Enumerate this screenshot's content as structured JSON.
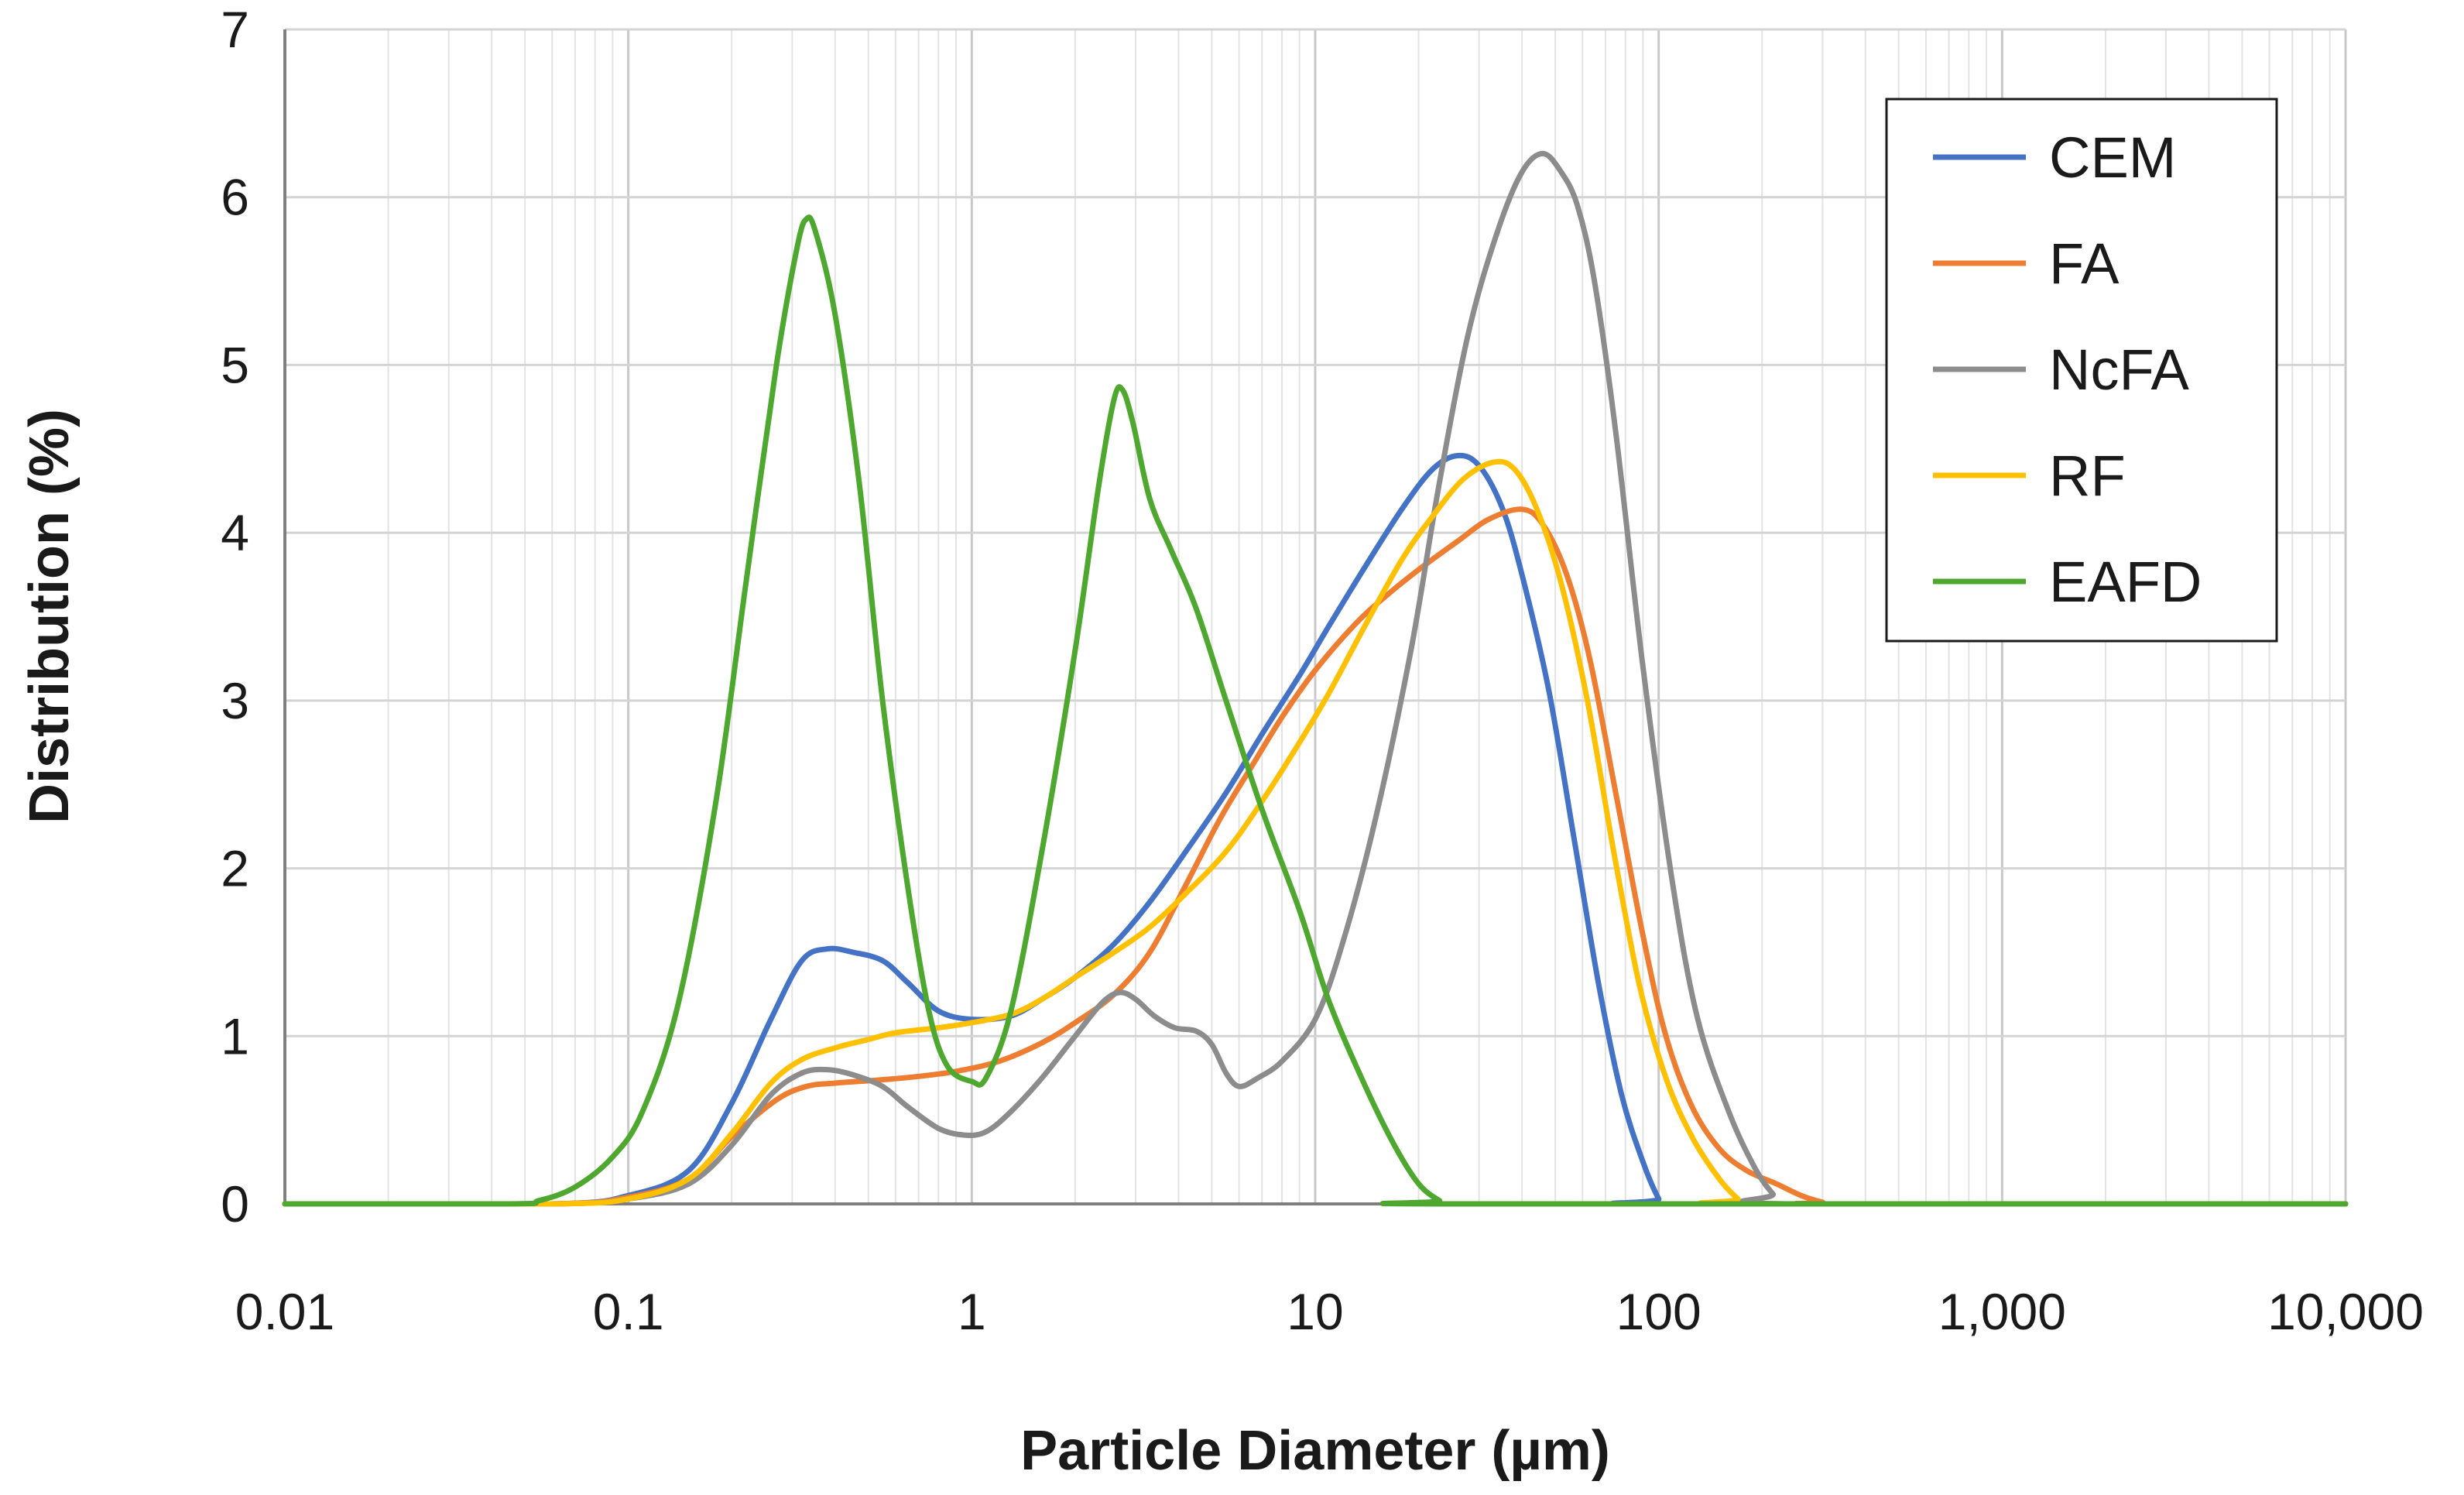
{
  "chart_data": {
    "type": "line",
    "title": "",
    "xlabel": "Particle Diameter (µm)",
    "ylabel": "Distribution (%)",
    "x_scale": "log",
    "xlim": [
      0.01,
      10000
    ],
    "ylim": [
      0,
      7
    ],
    "x_ticks": [
      0.01,
      0.1,
      1,
      10,
      100,
      1000,
      10000
    ],
    "x_tick_labels": [
      "0.01",
      "0.1",
      "1",
      "10",
      "100",
      "1,000",
      "10,000"
    ],
    "y_ticks": [
      0,
      1,
      2,
      3,
      4,
      5,
      6,
      7
    ],
    "y_tick_labels": [
      "0",
      "1",
      "2",
      "3",
      "4",
      "5",
      "6",
      "7"
    ],
    "grid": true,
    "legend_position": "top-right",
    "series": [
      {
        "name": "CEM",
        "color": "#4472C4",
        "points": [
          [
            0.01,
            0
          ],
          [
            0.06,
            0
          ],
          [
            0.1,
            0.05
          ],
          [
            0.15,
            0.2
          ],
          [
            0.2,
            0.6
          ],
          [
            0.26,
            1.1
          ],
          [
            0.32,
            1.45
          ],
          [
            0.38,
            1.52
          ],
          [
            0.45,
            1.5
          ],
          [
            0.55,
            1.45
          ],
          [
            0.65,
            1.32
          ],
          [
            0.8,
            1.15
          ],
          [
            1.0,
            1.1
          ],
          [
            1.3,
            1.12
          ],
          [
            1.6,
            1.22
          ],
          [
            2.0,
            1.35
          ],
          [
            2.6,
            1.55
          ],
          [
            3.3,
            1.8
          ],
          [
            4.2,
            2.1
          ],
          [
            5.5,
            2.45
          ],
          [
            7,
            2.8
          ],
          [
            9,
            3.15
          ],
          [
            11,
            3.45
          ],
          [
            14,
            3.8
          ],
          [
            18,
            4.15
          ],
          [
            22,
            4.38
          ],
          [
            26,
            4.46
          ],
          [
            30,
            4.4
          ],
          [
            35,
            4.15
          ],
          [
            40,
            3.75
          ],
          [
            48,
            3.05
          ],
          [
            57,
            2.15
          ],
          [
            67,
            1.3
          ],
          [
            78,
            0.65
          ],
          [
            90,
            0.25
          ],
          [
            100,
            0.03
          ],
          [
            104,
            0
          ],
          [
            10000,
            0
          ]
        ]
      },
      {
        "name": "FA",
        "color": "#ED7D31",
        "points": [
          [
            0.01,
            0
          ],
          [
            0.06,
            0
          ],
          [
            0.1,
            0.04
          ],
          [
            0.15,
            0.15
          ],
          [
            0.2,
            0.4
          ],
          [
            0.27,
            0.62
          ],
          [
            0.33,
            0.7
          ],
          [
            0.4,
            0.72
          ],
          [
            0.55,
            0.74
          ],
          [
            0.7,
            0.76
          ],
          [
            0.9,
            0.79
          ],
          [
            1.2,
            0.85
          ],
          [
            1.6,
            0.96
          ],
          [
            2.0,
            1.08
          ],
          [
            2.6,
            1.25
          ],
          [
            3.3,
            1.5
          ],
          [
            4.2,
            1.9
          ],
          [
            5.3,
            2.3
          ],
          [
            6.5,
            2.6
          ],
          [
            8,
            2.9
          ],
          [
            10,
            3.18
          ],
          [
            13,
            3.45
          ],
          [
            16,
            3.62
          ],
          [
            20,
            3.78
          ],
          [
            26,
            3.95
          ],
          [
            32,
            4.08
          ],
          [
            40,
            4.14
          ],
          [
            46,
            4.05
          ],
          [
            54,
            3.75
          ],
          [
            63,
            3.25
          ],
          [
            75,
            2.45
          ],
          [
            90,
            1.6
          ],
          [
            105,
            1.0
          ],
          [
            125,
            0.58
          ],
          [
            150,
            0.33
          ],
          [
            180,
            0.2
          ],
          [
            220,
            0.12
          ],
          [
            260,
            0.05
          ],
          [
            300,
            0.01
          ],
          [
            330,
            0
          ],
          [
            10000,
            0
          ]
        ]
      },
      {
        "name": "NcFA",
        "color": "#8C8C8C",
        "points": [
          [
            0.01,
            0
          ],
          [
            0.06,
            0
          ],
          [
            0.1,
            0.03
          ],
          [
            0.15,
            0.12
          ],
          [
            0.2,
            0.35
          ],
          [
            0.26,
            0.65
          ],
          [
            0.32,
            0.78
          ],
          [
            0.38,
            0.8
          ],
          [
            0.45,
            0.77
          ],
          [
            0.55,
            0.7
          ],
          [
            0.65,
            0.58
          ],
          [
            0.8,
            0.45
          ],
          [
            0.95,
            0.41
          ],
          [
            1.1,
            0.43
          ],
          [
            1.3,
            0.55
          ],
          [
            1.6,
            0.75
          ],
          [
            2.0,
            1.0
          ],
          [
            2.4,
            1.2
          ],
          [
            2.7,
            1.26
          ],
          [
            3.0,
            1.22
          ],
          [
            3.4,
            1.12
          ],
          [
            3.9,
            1.05
          ],
          [
            4.5,
            1.03
          ],
          [
            5.0,
            0.95
          ],
          [
            5.5,
            0.78
          ],
          [
            6.0,
            0.7
          ],
          [
            6.8,
            0.75
          ],
          [
            8,
            0.85
          ],
          [
            10,
            1.1
          ],
          [
            12,
            1.55
          ],
          [
            15,
            2.3
          ],
          [
            19,
            3.3
          ],
          [
            23,
            4.3
          ],
          [
            28,
            5.2
          ],
          [
            34,
            5.8
          ],
          [
            40,
            6.15
          ],
          [
            46,
            6.26
          ],
          [
            52,
            6.15
          ],
          [
            58,
            5.95
          ],
          [
            65,
            5.5
          ],
          [
            75,
            4.6
          ],
          [
            90,
            3.2
          ],
          [
            110,
            1.9
          ],
          [
            130,
            1.1
          ],
          [
            160,
            0.55
          ],
          [
            190,
            0.22
          ],
          [
            215,
            0.06
          ],
          [
            235,
            0
          ],
          [
            10000,
            0
          ]
        ]
      },
      {
        "name": "RF",
        "color": "#FFC000",
        "points": [
          [
            0.01,
            0
          ],
          [
            0.06,
            0
          ],
          [
            0.1,
            0.03
          ],
          [
            0.15,
            0.15
          ],
          [
            0.2,
            0.42
          ],
          [
            0.26,
            0.72
          ],
          [
            0.32,
            0.86
          ],
          [
            0.4,
            0.93
          ],
          [
            0.5,
            0.98
          ],
          [
            0.6,
            1.02
          ],
          [
            0.8,
            1.05
          ],
          [
            1.0,
            1.08
          ],
          [
            1.3,
            1.13
          ],
          [
            1.6,
            1.22
          ],
          [
            2.0,
            1.35
          ],
          [
            2.6,
            1.5
          ],
          [
            3.3,
            1.65
          ],
          [
            4.2,
            1.85
          ],
          [
            5.5,
            2.1
          ],
          [
            7,
            2.4
          ],
          [
            9,
            2.75
          ],
          [
            11,
            3.05
          ],
          [
            14,
            3.45
          ],
          [
            18,
            3.85
          ],
          [
            22,
            4.1
          ],
          [
            27,
            4.32
          ],
          [
            33,
            4.42
          ],
          [
            38,
            4.38
          ],
          [
            44,
            4.15
          ],
          [
            52,
            3.7
          ],
          [
            62,
            3.0
          ],
          [
            74,
            2.1
          ],
          [
            88,
            1.3
          ],
          [
            105,
            0.75
          ],
          [
            125,
            0.4
          ],
          [
            150,
            0.15
          ],
          [
            170,
            0.03
          ],
          [
            180,
            0
          ],
          [
            10000,
            0
          ]
        ]
      },
      {
        "name": "EAFD",
        "color": "#4EA72E",
        "points": [
          [
            0.01,
            0
          ],
          [
            0.045,
            0
          ],
          [
            0.055,
            0.02
          ],
          [
            0.07,
            0.1
          ],
          [
            0.09,
            0.28
          ],
          [
            0.11,
            0.55
          ],
          [
            0.14,
            1.2
          ],
          [
            0.18,
            2.4
          ],
          [
            0.22,
            3.7
          ],
          [
            0.27,
            5.0
          ],
          [
            0.31,
            5.7
          ],
          [
            0.33,
            5.87
          ],
          [
            0.35,
            5.8
          ],
          [
            0.4,
            5.3
          ],
          [
            0.47,
            4.3
          ],
          [
            0.55,
            3.0
          ],
          [
            0.65,
            1.9
          ],
          [
            0.75,
            1.15
          ],
          [
            0.85,
            0.82
          ],
          [
            1.0,
            0.73
          ],
          [
            1.1,
            0.75
          ],
          [
            1.3,
            1.15
          ],
          [
            1.6,
            2.1
          ],
          [
            2.0,
            3.3
          ],
          [
            2.35,
            4.3
          ],
          [
            2.6,
            4.8
          ],
          [
            2.75,
            4.85
          ],
          [
            2.95,
            4.65
          ],
          [
            3.3,
            4.2
          ],
          [
            3.8,
            3.9
          ],
          [
            4.5,
            3.55
          ],
          [
            5.5,
            3.0
          ],
          [
            7,
            2.35
          ],
          [
            9,
            1.75
          ],
          [
            11,
            1.2
          ],
          [
            14,
            0.7
          ],
          [
            17,
            0.35
          ],
          [
            20,
            0.12
          ],
          [
            23,
            0.02
          ],
          [
            25,
            0
          ],
          [
            10000,
            0
          ]
        ]
      }
    ]
  }
}
